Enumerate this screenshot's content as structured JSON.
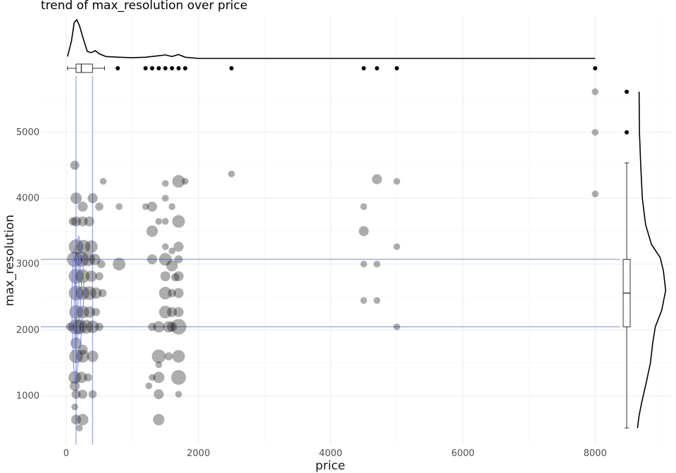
{
  "chart_data": {
    "type": "scatter",
    "title": "trend of max_resolution over price",
    "xlabel": "price",
    "ylabel": "max_resolution",
    "xlim": [
      -100,
      9200
    ],
    "ylim": [
      400,
      5900
    ],
    "x_ticks": [
      0,
      2000,
      4000,
      6000,
      8000
    ],
    "y_ticks": [
      1000,
      2000,
      3000,
      4000,
      5000
    ],
    "grid": true,
    "point_color": "#000000",
    "reference_line_color": "#6f7ff0",
    "density_contour_color": "#6f7ff0",
    "marginal_top": "density and boxplot of price",
    "marginal_right": "density and boxplot of max_resolution",
    "reference_lines": {
      "x": [
        149,
        399
      ],
      "y": [
        2048,
        3072
      ]
    },
    "price_boxplot": {
      "min": 20,
      "q1": 149,
      "median": 229,
      "q3": 399,
      "max": 580,
      "outliers": [
        780,
        1200,
        1300,
        1400,
        1500,
        1600,
        1700,
        1800,
        2500,
        4500,
        4700,
        5000,
        8000
      ]
    },
    "max_resolution_boxplot": {
      "min": 512,
      "q1": 2048,
      "median": 2560,
      "q3": 3072,
      "max": 4536,
      "outliers": [
        5000,
        5616
      ]
    },
    "points": [
      {
        "x": 150,
        "y": 2048,
        "n": 14
      },
      {
        "x": 200,
        "y": 2048,
        "n": 12
      },
      {
        "x": 300,
        "y": 2048,
        "n": 10
      },
      {
        "x": 400,
        "y": 2048,
        "n": 8
      },
      {
        "x": 60,
        "y": 2048,
        "n": 2
      },
      {
        "x": 500,
        "y": 2048,
        "n": 2
      },
      {
        "x": 150,
        "y": 2272,
        "n": 10
      },
      {
        "x": 250,
        "y": 2272,
        "n": 8
      },
      {
        "x": 350,
        "y": 2272,
        "n": 6
      },
      {
        "x": 450,
        "y": 2272,
        "n": 2
      },
      {
        "x": 150,
        "y": 2560,
        "n": 12
      },
      {
        "x": 250,
        "y": 2560,
        "n": 10
      },
      {
        "x": 350,
        "y": 2560,
        "n": 10
      },
      {
        "x": 450,
        "y": 2560,
        "n": 6
      },
      {
        "x": 550,
        "y": 2560,
        "n": 2
      },
      {
        "x": 150,
        "y": 2816,
        "n": 12
      },
      {
        "x": 250,
        "y": 2816,
        "n": 10
      },
      {
        "x": 380,
        "y": 2816,
        "n": 6
      },
      {
        "x": 500,
        "y": 2816,
        "n": 2
      },
      {
        "x": 130,
        "y": 3072,
        "n": 14
      },
      {
        "x": 230,
        "y": 3072,
        "n": 12
      },
      {
        "x": 330,
        "y": 3072,
        "n": 10
      },
      {
        "x": 430,
        "y": 3072,
        "n": 6
      },
      {
        "x": 530,
        "y": 3000,
        "n": 2
      },
      {
        "x": 150,
        "y": 3264,
        "n": 12
      },
      {
        "x": 260,
        "y": 3264,
        "n": 10
      },
      {
        "x": 380,
        "y": 3264,
        "n": 8
      },
      {
        "x": 150,
        "y": 3648,
        "n": 4
      },
      {
        "x": 250,
        "y": 3648,
        "n": 4
      },
      {
        "x": 350,
        "y": 3648,
        "n": 4
      },
      {
        "x": 100,
        "y": 3648,
        "n": 2
      },
      {
        "x": 150,
        "y": 4000,
        "n": 6
      },
      {
        "x": 250,
        "y": 3872,
        "n": 4
      },
      {
        "x": 400,
        "y": 4000,
        "n": 4
      },
      {
        "x": 500,
        "y": 3872,
        "n": 2
      },
      {
        "x": 560,
        "y": 4256,
        "n": 1
      },
      {
        "x": 130,
        "y": 4500,
        "n": 3
      },
      {
        "x": 150,
        "y": 1600,
        "n": 10
      },
      {
        "x": 250,
        "y": 1600,
        "n": 8
      },
      {
        "x": 400,
        "y": 1600,
        "n": 6
      },
      {
        "x": 150,
        "y": 1800,
        "n": 6
      },
      {
        "x": 250,
        "y": 1700,
        "n": 4
      },
      {
        "x": 130,
        "y": 1280,
        "n": 8
      },
      {
        "x": 230,
        "y": 1280,
        "n": 6
      },
      {
        "x": 330,
        "y": 1280,
        "n": 2
      },
      {
        "x": 130,
        "y": 1152,
        "n": 4
      },
      {
        "x": 150,
        "y": 1024,
        "n": 3
      },
      {
        "x": 250,
        "y": 1024,
        "n": 3
      },
      {
        "x": 400,
        "y": 1024,
        "n": 2
      },
      {
        "x": 150,
        "y": 640,
        "n": 4
      },
      {
        "x": 250,
        "y": 640,
        "n": 6
      },
      {
        "x": 200,
        "y": 512,
        "n": 1
      },
      {
        "x": 130,
        "y": 832,
        "n": 1
      },
      {
        "x": 800,
        "y": 3000,
        "n": 8
      },
      {
        "x": 800,
        "y": 3872,
        "n": 1
      },
      {
        "x": 1200,
        "y": 3872,
        "n": 1
      },
      {
        "x": 1300,
        "y": 3872,
        "n": 4
      },
      {
        "x": 1300,
        "y": 3500,
        "n": 6
      },
      {
        "x": 1300,
        "y": 3072,
        "n": 4
      },
      {
        "x": 1300,
        "y": 2048,
        "n": 2
      },
      {
        "x": 1250,
        "y": 1152,
        "n": 1
      },
      {
        "x": 1300,
        "y": 1280,
        "n": 1
      },
      {
        "x": 1400,
        "y": 2048,
        "n": 6
      },
      {
        "x": 1400,
        "y": 1600,
        "n": 10
      },
      {
        "x": 1400,
        "y": 1280,
        "n": 6
      },
      {
        "x": 1400,
        "y": 1024,
        "n": 4
      },
      {
        "x": 1400,
        "y": 640,
        "n": 6
      },
      {
        "x": 1400,
        "y": 1472,
        "n": 1
      },
      {
        "x": 1400,
        "y": 3648,
        "n": 1
      },
      {
        "x": 1500,
        "y": 4224,
        "n": 1
      },
      {
        "x": 1500,
        "y": 4000,
        "n": 1
      },
      {
        "x": 1500,
        "y": 3264,
        "n": 1
      },
      {
        "x": 1500,
        "y": 3072,
        "n": 8
      },
      {
        "x": 1500,
        "y": 2816,
        "n": 4
      },
      {
        "x": 1500,
        "y": 2560,
        "n": 8
      },
      {
        "x": 1500,
        "y": 2272,
        "n": 8
      },
      {
        "x": 1550,
        "y": 2048,
        "n": 6
      },
      {
        "x": 1550,
        "y": 1600,
        "n": 2
      },
      {
        "x": 1500,
        "y": 3648,
        "n": 1
      },
      {
        "x": 1600,
        "y": 3872,
        "n": 1
      },
      {
        "x": 1600,
        "y": 3200,
        "n": 1
      },
      {
        "x": 1600,
        "y": 2976,
        "n": 6
      },
      {
        "x": 1600,
        "y": 2560,
        "n": 2
      },
      {
        "x": 1600,
        "y": 2272,
        "n": 4
      },
      {
        "x": 1600,
        "y": 2048,
        "n": 4
      },
      {
        "x": 1650,
        "y": 2800,
        "n": 2
      },
      {
        "x": 1700,
        "y": 4256,
        "n": 8
      },
      {
        "x": 1700,
        "y": 3648,
        "n": 8
      },
      {
        "x": 1700,
        "y": 3264,
        "n": 4
      },
      {
        "x": 1700,
        "y": 3072,
        "n": 2
      },
      {
        "x": 1700,
        "y": 2816,
        "n": 4
      },
      {
        "x": 1700,
        "y": 2560,
        "n": 4
      },
      {
        "x": 1700,
        "y": 2272,
        "n": 4
      },
      {
        "x": 1700,
        "y": 2048,
        "n": 14
      },
      {
        "x": 1700,
        "y": 1600,
        "n": 8
      },
      {
        "x": 1700,
        "y": 1280,
        "n": 12
      },
      {
        "x": 1700,
        "y": 1024,
        "n": 1
      },
      {
        "x": 1800,
        "y": 4256,
        "n": 1
      },
      {
        "x": 2500,
        "y": 4368,
        "n": 1
      },
      {
        "x": 4500,
        "y": 3872,
        "n": 1
      },
      {
        "x": 4500,
        "y": 3500,
        "n": 4
      },
      {
        "x": 4500,
        "y": 3000,
        "n": 1
      },
      {
        "x": 4500,
        "y": 2448,
        "n": 1
      },
      {
        "x": 4700,
        "y": 4288,
        "n": 4
      },
      {
        "x": 4700,
        "y": 3000,
        "n": 1
      },
      {
        "x": 4700,
        "y": 2448,
        "n": 1
      },
      {
        "x": 5000,
        "y": 4256,
        "n": 1
      },
      {
        "x": 5000,
        "y": 3264,
        "n": 1
      },
      {
        "x": 5000,
        "y": 2048,
        "n": 1
      },
      {
        "x": 8000,
        "y": 5616,
        "n": 1
      },
      {
        "x": 8000,
        "y": 5000,
        "n": 1
      },
      {
        "x": 8000,
        "y": 4064,
        "n": 1
      }
    ],
    "price_density": [
      [
        20,
        0.05
      ],
      [
        80,
        0.45
      ],
      [
        120,
        0.92
      ],
      [
        160,
        1.0
      ],
      [
        200,
        0.85
      ],
      [
        260,
        0.5
      ],
      [
        320,
        0.18
      ],
      [
        380,
        0.15
      ],
      [
        440,
        0.2
      ],
      [
        500,
        0.12
      ],
      [
        600,
        0.05
      ],
      [
        800,
        0.03
      ],
      [
        1000,
        0.02
      ],
      [
        1200,
        0.03
      ],
      [
        1400,
        0.07
      ],
      [
        1500,
        0.09
      ],
      [
        1600,
        0.05
      ],
      [
        1700,
        0.1
      ],
      [
        1800,
        0.03
      ],
      [
        2000,
        0.0
      ],
      [
        8000,
        0.0
      ]
    ],
    "max_resolution_density": [
      [
        512,
        0.05
      ],
      [
        700,
        0.1
      ],
      [
        900,
        0.18
      ],
      [
        1200,
        0.32
      ],
      [
        1500,
        0.45
      ],
      [
        1800,
        0.52
      ],
      [
        2048,
        0.6
      ],
      [
        2300,
        0.8
      ],
      [
        2600,
        0.92
      ],
      [
        2900,
        0.85
      ],
      [
        3100,
        0.75
      ],
      [
        3300,
        0.48
      ],
      [
        3600,
        0.3
      ],
      [
        4000,
        0.2
      ],
      [
        4500,
        0.15
      ],
      [
        5000,
        0.11
      ],
      [
        5616,
        0.1
      ]
    ],
    "price_contour": [
      [
        [
          130,
          1180
        ],
        [
          210,
          1700
        ],
        [
          270,
          2550
        ],
        [
          250,
          3150
        ],
        [
          190,
          3420
        ],
        [
          110,
          3180
        ],
        [
          80,
          2400
        ],
        [
          110,
          1520
        ]
      ],
      [
        [
          140,
          1700
        ],
        [
          200,
          2100
        ],
        [
          230,
          2700
        ],
        [
          200,
          3150
        ],
        [
          140,
          3100
        ],
        [
          120,
          2400
        ]
      ],
      [
        [
          150,
          2200
        ],
        [
          190,
          2500
        ],
        [
          200,
          2900
        ],
        [
          165,
          3100
        ],
        [
          135,
          2800
        ]
      ]
    ]
  }
}
